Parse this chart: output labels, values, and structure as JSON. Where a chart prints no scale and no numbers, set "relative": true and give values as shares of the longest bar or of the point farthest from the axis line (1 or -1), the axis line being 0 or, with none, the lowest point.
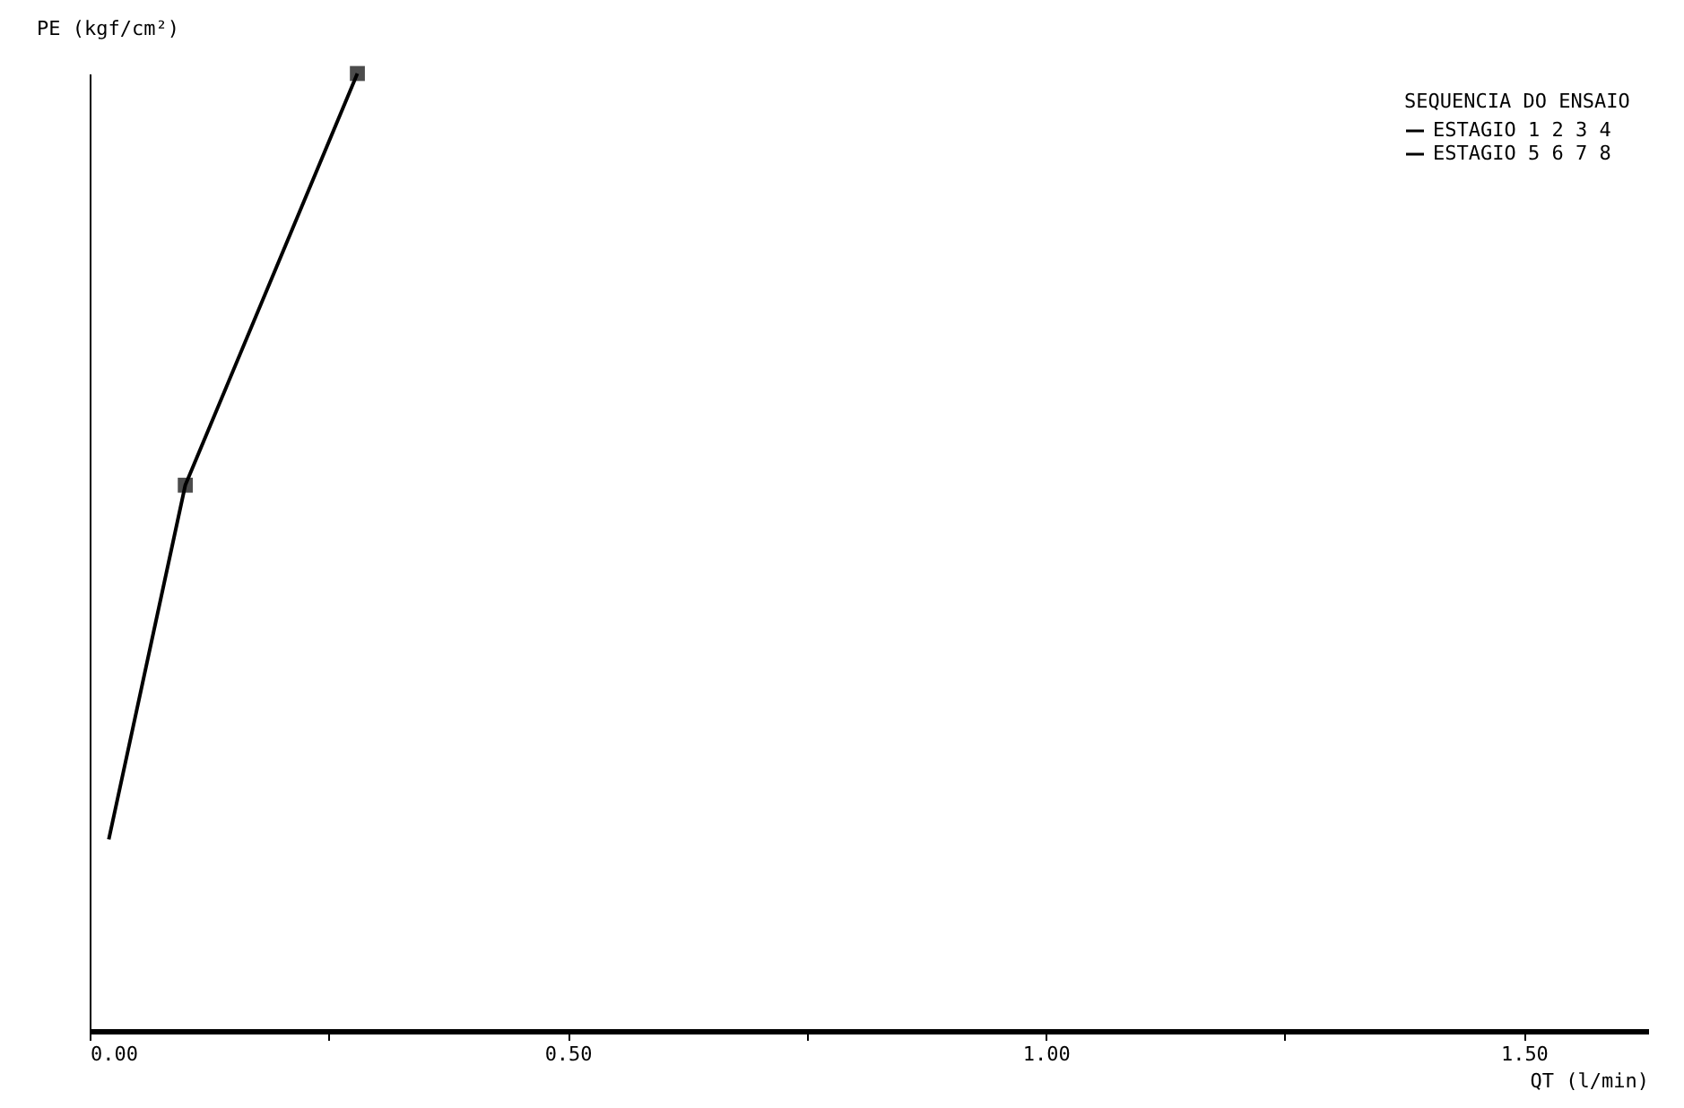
{
  "chart_data": {
    "type": "line",
    "xlabel": "QT (l/min)",
    "ylabel": "PE (kgf/cm²)",
    "legend_title": "SEQUENCIA DO ENSAIO",
    "relative": true,
    "xlim": [
      0,
      1.63
    ],
    "xticks": [
      {
        "value": 0,
        "label": "0.00"
      },
      {
        "value": 0.25,
        "label": null
      },
      {
        "value": 0.5,
        "label": "0.50"
      },
      {
        "value": 0.75,
        "label": null
      },
      {
        "value": 1,
        "label": "1.00"
      },
      {
        "value": 1.25,
        "label": null
      },
      {
        "value": 1.5,
        "label": "1.50"
      }
    ],
    "grid": false,
    "legend": "top right",
    "marker": "none",
    "series": [
      {
        "name": "ESTAGIO 1 2 3 4",
        "color": "#000000",
        "x": [
          0.02,
          0.1,
          0.28
        ],
        "values": [
          0.2,
          0.57,
          1
        ]
      },
      {
        "name": "ESTAGIO 5 6 7 8",
        "color": "#000000",
        "type": "scatter",
        "marker": "square",
        "x": [
          0.1,
          0.28
        ],
        "values": [
          0.57,
          1
        ]
      }
    ]
  }
}
